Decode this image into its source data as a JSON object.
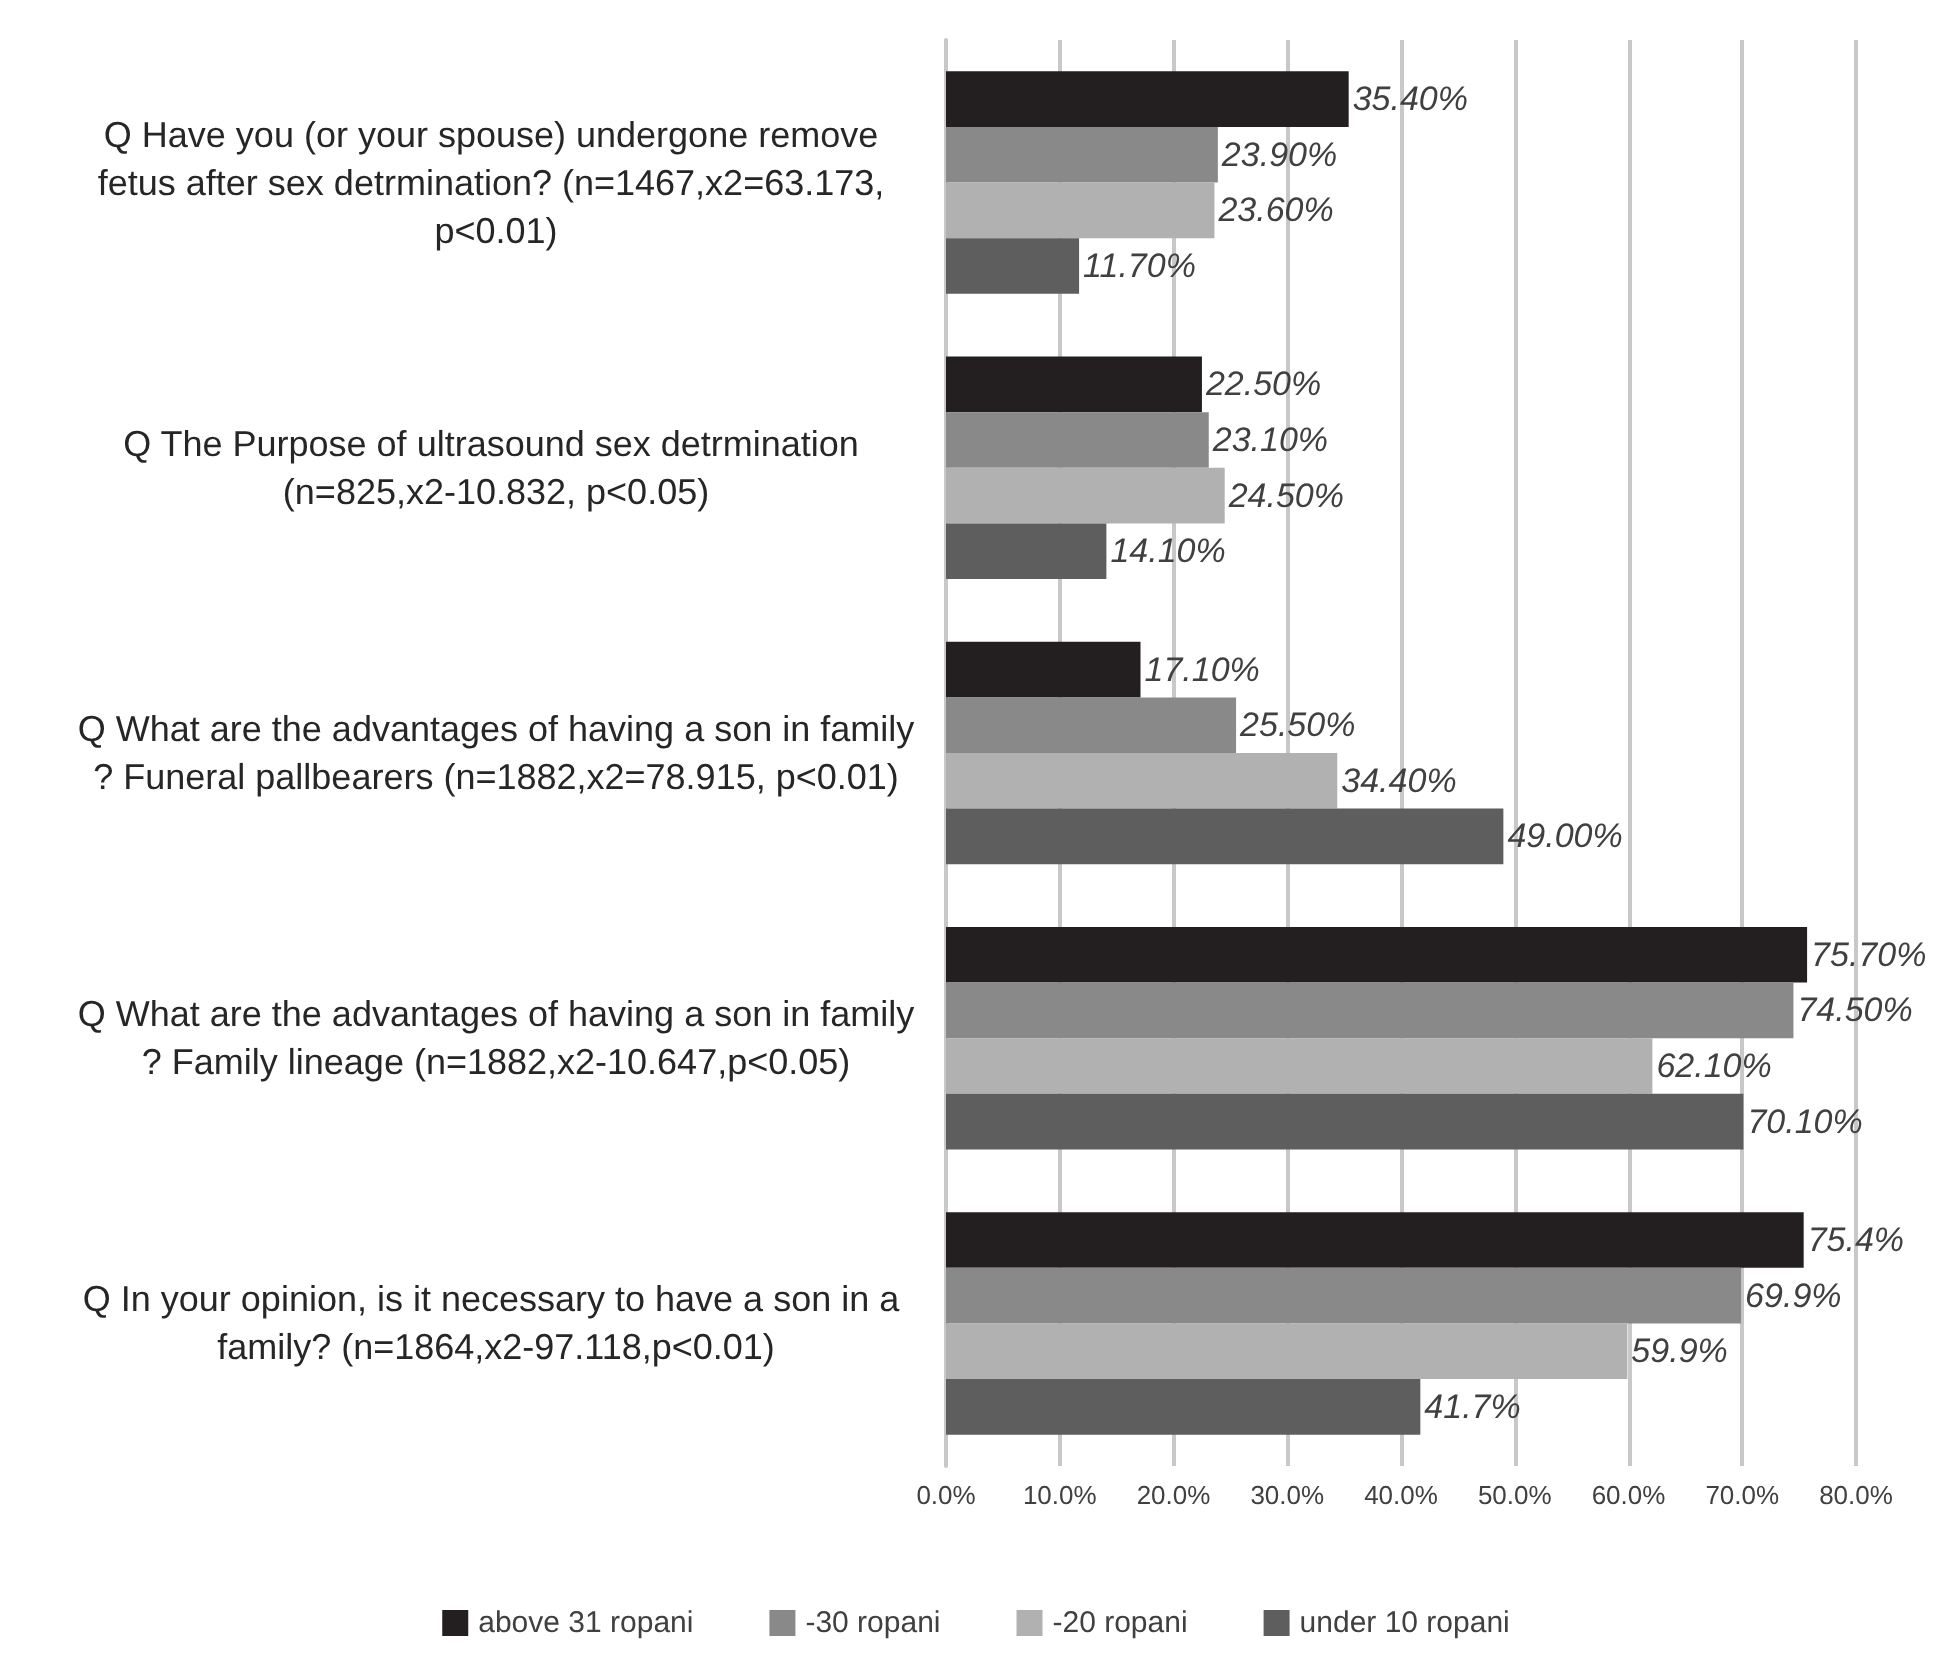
{
  "chart_data": {
    "type": "bar",
    "orientation": "horizontal",
    "categories": [
      "Q Have you (or your spouse) undergone remove fetus after sex detrmination? (n=1467,x2=63.173, p<0.01)",
      "Q The Purpose of ultrasound sex detrmination (n=825,x2-10.832, p<0.05)",
      "Q What are the advantages of having a son in family? Funeral pallbearers (n=1882,x2=78.915, p<0.01)",
      "Q What are the advantages of having a son in family? Family lineage (n=1882,x2-10.647,p<0.05)",
      "Q In your opinion, is it necessary to have a son in a family? (n=1864,x2-97.118,p<0.01)"
    ],
    "series": [
      {
        "name": "above 31 ropani",
        "color": "#231f20",
        "values": [
          35.4,
          22.5,
          17.1,
          75.7,
          75.4
        ],
        "value_labels": [
          "35.40%",
          "22.50%",
          "17.10%",
          "75.70%",
          "75.4%"
        ]
      },
      {
        "name": "-30 ropani",
        "color": "#898989",
        "values": [
          23.9,
          23.1,
          25.5,
          74.5,
          69.9
        ],
        "value_labels": [
          "23.90%",
          "23.10%",
          "25.50%",
          "74.50%",
          "69.9%"
        ]
      },
      {
        "name": "-20 ropani",
        "color": "#b1b1b1",
        "values": [
          23.6,
          24.5,
          34.4,
          62.1,
          59.9
        ],
        "value_labels": [
          "23.60%",
          "24.50%",
          "34.40%",
          "62.10%",
          "59.9%"
        ]
      },
      {
        "name": "under 10 ropani",
        "color": "#5e5e5e",
        "values": [
          11.7,
          14.1,
          49.0,
          70.1,
          41.7
        ],
        "value_labels": [
          "11.70%",
          "14.10%",
          "49.00%",
          "70.10%",
          "41.7%"
        ]
      }
    ],
    "xlim": [
      0,
      80
    ],
    "xticks": [
      {
        "value": 0,
        "label": "0.0%"
      },
      {
        "value": 10,
        "label": "10.0%"
      },
      {
        "value": 20,
        "label": "20.0%"
      },
      {
        "value": 30,
        "label": "30.0%"
      },
      {
        "value": 40,
        "label": "40.0%"
      },
      {
        "value": 50,
        "label": "50.0%"
      },
      {
        "value": 60,
        "label": "60.0%"
      },
      {
        "value": 70,
        "label": "70.0%"
      },
      {
        "value": 80,
        "label": "80.0%"
      }
    ],
    "grid": "x",
    "legend": "bottom"
  }
}
